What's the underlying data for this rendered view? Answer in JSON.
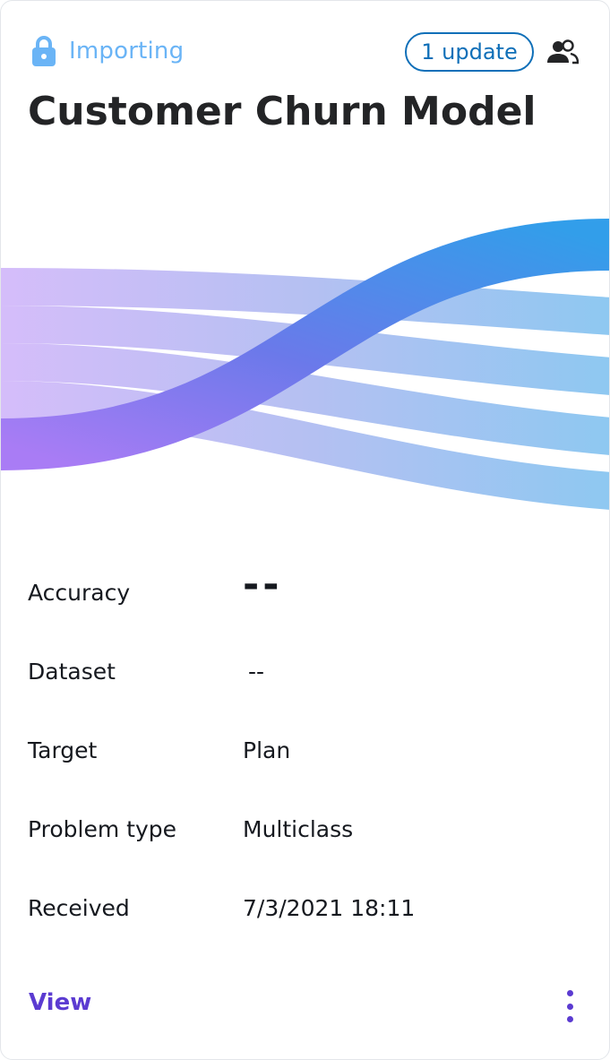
{
  "status": {
    "label": "Importing",
    "icon": "lock-icon",
    "color": "#6ab4f6"
  },
  "update_badge": {
    "label": "1 update",
    "color": "#0f6fb8"
  },
  "shared_icon": "users-icon",
  "title": "Customer Churn Model",
  "details": {
    "accuracy": {
      "label": "Accuracy",
      "value": "--"
    },
    "dataset": {
      "label": "Dataset",
      "value": "--"
    },
    "target": {
      "label": "Target",
      "value": "Plan"
    },
    "problem_type": {
      "label": "Problem type",
      "value": "Multiclass"
    },
    "received": {
      "label": "Received",
      "value": "7/3/2021 18:11"
    }
  },
  "actions": {
    "view_label": "View",
    "more_icon": "more-vertical-icon",
    "accent_color": "#5b3bd1"
  }
}
